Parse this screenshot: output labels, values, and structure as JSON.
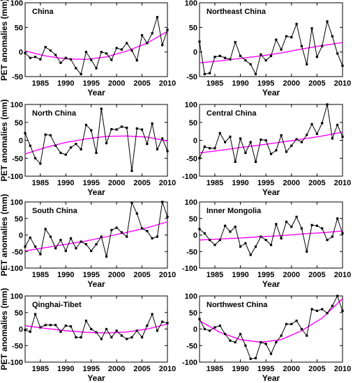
{
  "chart_data": [
    {
      "type": "line",
      "title": "China",
      "xlabel": "Year",
      "ylabel": "PET anomalies (mm)",
      "xlim": [
        1982,
        2010
      ],
      "ylim": [
        -50,
        100
      ],
      "xticks": [
        1985,
        1990,
        1995,
        2000,
        2005,
        2010
      ],
      "yticks": [
        -50,
        0,
        50,
        100
      ],
      "colors": {
        "observed": "#000000",
        "trend": "#ff00ff"
      },
      "series": [
        {
          "x": [
            1982,
            1983,
            1984,
            1985,
            1986,
            1987,
            1988,
            1989,
            1990,
            1991,
            1992,
            1993,
            1994,
            1995,
            1996,
            1997,
            1998,
            1999,
            2000,
            2001,
            2002,
            2003,
            2004,
            2005,
            2006,
            2007,
            2008,
            2009,
            2010
          ],
          "y": [
            -2,
            -12,
            -10,
            -15,
            10,
            3,
            -6,
            -22,
            -12,
            -15,
            -33,
            -45,
            0,
            -16,
            -33,
            0,
            -3,
            -16,
            8,
            5,
            18,
            3,
            -17,
            34,
            18,
            38,
            71,
            14,
            45
          ]
        },
        {
          "x": [
            1982,
            1986,
            1990,
            1994,
            1998,
            2002,
            2006,
            2010
          ],
          "y": [
            2,
            -8,
            -14,
            -15,
            -10,
            2,
            18,
            42
          ]
        }
      ]
    },
    {
      "type": "line",
      "title": "Northeast China",
      "xlabel": "Year",
      "ylabel": "",
      "xlim": [
        1982,
        2010
      ],
      "ylim": [
        -50,
        100
      ],
      "xticks": [
        1985,
        1990,
        1995,
        2000,
        2005,
        2010
      ],
      "yticks": [
        -50,
        0,
        50,
        100
      ],
      "colors": {
        "observed": "#000000",
        "trend": "#ff00ff"
      },
      "series": [
        {
          "x": [
            1982,
            1983,
            1984,
            1985,
            1986,
            1987,
            1988,
            1989,
            1990,
            1991,
            1992,
            1993,
            1994,
            1995,
            1996,
            1997,
            1998,
            1999,
            2000,
            2001,
            2002,
            2003,
            2004,
            2005,
            2006,
            2007,
            2008,
            2009,
            2010
          ],
          "y": [
            21,
            -45,
            -43,
            -10,
            -8,
            -12,
            -15,
            20,
            -8,
            -17,
            -25,
            -45,
            -5,
            -17,
            -8,
            25,
            5,
            32,
            30,
            57,
            12,
            -25,
            48,
            -10,
            12,
            62,
            32,
            -3,
            -28
          ]
        },
        {
          "x": [
            1982,
            1986,
            1990,
            1994,
            1998,
            2002,
            2006,
            2010
          ],
          "y": [
            -22,
            -18,
            -13,
            -8,
            -2,
            6,
            13,
            19
          ]
        }
      ]
    },
    {
      "type": "line",
      "title": "North China",
      "xlabel": "Year",
      "ylabel": "PET anomalies (mm)",
      "xlim": [
        1982,
        2010
      ],
      "ylim": [
        -100,
        100
      ],
      "xticks": [
        1985,
        1990,
        1995,
        2000,
        2005,
        2010
      ],
      "yticks": [
        -100,
        -50,
        0,
        50,
        100
      ],
      "colors": {
        "observed": "#000000",
        "trend": "#ff00ff"
      },
      "series": [
        {
          "x": [
            1982,
            1983,
            1984,
            1985,
            1986,
            1987,
            1988,
            1989,
            1990,
            1991,
            1992,
            1993,
            1994,
            1995,
            1996,
            1997,
            1998,
            1999,
            2000,
            2001,
            2002,
            2003,
            2004,
            2005,
            2006,
            2007,
            2008,
            2009,
            2010
          ],
          "y": [
            20,
            -15,
            -50,
            -65,
            16,
            14,
            -15,
            -35,
            -40,
            -20,
            -10,
            -25,
            43,
            28,
            -35,
            88,
            -8,
            31,
            30,
            38,
            35,
            -85,
            33,
            30,
            -10,
            47,
            -25,
            5,
            -30
          ]
        },
        {
          "x": [
            1982,
            1986,
            1990,
            1994,
            1998,
            2002,
            2006,
            2010
          ],
          "y": [
            -38,
            -20,
            -6,
            4,
            11,
            12,
            9,
            -2
          ]
        }
      ]
    },
    {
      "type": "line",
      "title": "Central China",
      "xlabel": "Year",
      "ylabel": "",
      "xlim": [
        1982,
        2010
      ],
      "ylim": [
        -100,
        100
      ],
      "xticks": [
        1985,
        1990,
        1995,
        2000,
        2005,
        2010
      ],
      "yticks": [
        -100,
        -50,
        0,
        50,
        100
      ],
      "colors": {
        "observed": "#000000",
        "trend": "#ff00ff"
      },
      "series": [
        {
          "x": [
            1982,
            1983,
            1984,
            1985,
            1986,
            1987,
            1988,
            1989,
            1990,
            1991,
            1992,
            1993,
            1994,
            1995,
            1996,
            1997,
            1998,
            1999,
            2000,
            2001,
            2002,
            2003,
            2004,
            2005,
            2006,
            2007,
            2008,
            2009,
            2010
          ],
          "y": [
            -50,
            -18,
            -22,
            -22,
            20,
            -5,
            10,
            -60,
            5,
            -35,
            -5,
            -60,
            2,
            0,
            -38,
            -28,
            14,
            -32,
            -15,
            3,
            -5,
            15,
            45,
            18,
            48,
            100,
            5,
            43,
            10
          ]
        },
        {
          "x": [
            1982,
            1986,
            1990,
            1994,
            1998,
            2002,
            2006,
            2010
          ],
          "y": [
            -35,
            -28,
            -20,
            -13,
            -5,
            3,
            12,
            23
          ]
        }
      ]
    },
    {
      "type": "line",
      "title": "South China",
      "xlabel": "Year",
      "ylabel": "PET anomalies (mm)",
      "xlim": [
        1982,
        2010
      ],
      "ylim": [
        -100,
        100
      ],
      "xticks": [
        1985,
        1990,
        1995,
        2000,
        2005,
        2010
      ],
      "yticks": [
        -100,
        -50,
        0,
        50,
        100
      ],
      "colors": {
        "observed": "#000000",
        "trend": "#ff00ff"
      },
      "series": [
        {
          "x": [
            1982,
            1983,
            1984,
            1985,
            1986,
            1987,
            1988,
            1989,
            1990,
            1991,
            1992,
            1993,
            1994,
            1995,
            1996,
            1997,
            1998,
            1999,
            2000,
            2001,
            2002,
            2003,
            2004,
            2005,
            2006,
            2007,
            2008,
            2009,
            2010
          ],
          "y": [
            -35,
            -8,
            -35,
            -58,
            18,
            -5,
            -40,
            -15,
            -48,
            -10,
            -40,
            -20,
            -28,
            -48,
            -28,
            -5,
            -65,
            15,
            22,
            8,
            -5,
            98,
            65,
            20,
            12,
            -10,
            -5,
            100,
            55
          ]
        },
        {
          "x": [
            1982,
            1986,
            1990,
            1994,
            1998,
            2002,
            2006,
            2010
          ],
          "y": [
            -48,
            -38,
            -28,
            -18,
            -5,
            8,
            22,
            40
          ]
        }
      ]
    },
    {
      "type": "line",
      "title": "Inner Mongolia",
      "xlabel": "Year",
      "ylabel": "",
      "xlim": [
        1982,
        2010
      ],
      "ylim": [
        -100,
        100
      ],
      "xticks": [
        1985,
        1990,
        1995,
        2000,
        2005,
        2010
      ],
      "yticks": [
        -100,
        -50,
        0,
        50,
        100
      ],
      "colors": {
        "observed": "#000000",
        "trend": "#ff00ff"
      },
      "series": [
        {
          "x": [
            1982,
            1983,
            1984,
            1985,
            1986,
            1987,
            1988,
            1989,
            1990,
            1991,
            1992,
            1993,
            1994,
            1995,
            1996,
            1997,
            1998,
            1999,
            2000,
            2001,
            2002,
            2003,
            2004,
            2005,
            2006,
            2007,
            2008,
            2009,
            2010
          ],
          "y": [
            18,
            5,
            -15,
            -30,
            -15,
            28,
            10,
            25,
            -35,
            -25,
            -60,
            -35,
            -5,
            -15,
            -30,
            33,
            -10,
            40,
            25,
            55,
            20,
            -50,
            30,
            28,
            20,
            -15,
            -5,
            50,
            5
          ]
        },
        {
          "x": [
            1982,
            1986,
            1990,
            1994,
            1998,
            2002,
            2006,
            2010
          ],
          "y": [
            -15,
            -12,
            -9,
            -5,
            -2,
            3,
            7,
            12
          ]
        }
      ]
    },
    {
      "type": "line",
      "title": "Qinghai-Tibet",
      "xlabel": "Year",
      "ylabel": "PET anomalies (mm)",
      "xlim": [
        1982,
        2010
      ],
      "ylim": [
        -100,
        100
      ],
      "xticks": [
        1985,
        1990,
        1995,
        2000,
        2005,
        2010
      ],
      "yticks": [
        -100,
        -50,
        0,
        50,
        100
      ],
      "colors": {
        "observed": "#000000",
        "trend": "#ff00ff"
      },
      "series": [
        {
          "x": [
            1982,
            1983,
            1984,
            1985,
            1986,
            1987,
            1988,
            1989,
            1990,
            1991,
            1992,
            1993,
            1994,
            1995,
            1996,
            1997,
            1998,
            1999,
            2000,
            2001,
            2002,
            2003,
            2004,
            2005,
            2006,
            2007,
            2008,
            2009,
            2010
          ],
          "y": [
            -3,
            -8,
            45,
            5,
            12,
            12,
            12,
            -8,
            10,
            8,
            -25,
            -25,
            25,
            0,
            -10,
            -30,
            0,
            -25,
            -5,
            -20,
            -30,
            -25,
            -5,
            -25,
            10,
            45,
            -5,
            22,
            18
          ]
        },
        {
          "x": [
            1982,
            1986,
            1990,
            1994,
            1998,
            2002,
            2006,
            2010
          ],
          "y": [
            10,
            2,
            -5,
            -10,
            -12,
            -9,
            0,
            15
          ]
        }
      ]
    },
    {
      "type": "line",
      "title": "Northwest China",
      "xlabel": "Year",
      "ylabel": "",
      "xlim": [
        1982,
        2010
      ],
      "ylim": [
        -100,
        100
      ],
      "xticks": [
        1985,
        1990,
        1995,
        2000,
        2005,
        2010
      ],
      "yticks": [
        -100,
        -50,
        0,
        50,
        100
      ],
      "colors": {
        "observed": "#000000",
        "trend": "#ff00ff"
      },
      "series": [
        {
          "x": [
            1982,
            1983,
            1984,
            1985,
            1986,
            1987,
            1988,
            1989,
            1990,
            1991,
            1992,
            1993,
            1994,
            1995,
            1996,
            1997,
            1998,
            1999,
            2000,
            2001,
            2002,
            2003,
            2004,
            2005,
            2006,
            2007,
            2008,
            2009,
            2010
          ],
          "y": [
            30,
            0,
            -5,
            5,
            10,
            -15,
            -35,
            -40,
            -15,
            -50,
            -90,
            -88,
            -40,
            -45,
            -75,
            -40,
            -20,
            15,
            15,
            25,
            0,
            -20,
            60,
            55,
            60,
            48,
            70,
            100,
            55
          ]
        },
        {
          "x": [
            1982,
            1986,
            1990,
            1994,
            1998,
            2002,
            2006,
            2010
          ],
          "y": [
            25,
            -10,
            -32,
            -40,
            -32,
            -5,
            33,
            92
          ]
        }
      ]
    }
  ]
}
